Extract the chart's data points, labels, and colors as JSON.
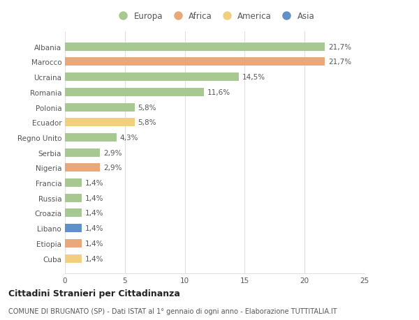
{
  "countries": [
    "Albania",
    "Marocco",
    "Ucraina",
    "Romania",
    "Polonia",
    "Ecuador",
    "Regno Unito",
    "Serbia",
    "Nigeria",
    "Francia",
    "Russia",
    "Croazia",
    "Libano",
    "Etiopia",
    "Cuba"
  ],
  "values": [
    21.7,
    21.7,
    14.5,
    11.6,
    5.8,
    5.8,
    4.3,
    2.9,
    2.9,
    1.4,
    1.4,
    1.4,
    1.4,
    1.4,
    1.4
  ],
  "labels": [
    "21,7%",
    "21,7%",
    "14,5%",
    "11,6%",
    "5,8%",
    "5,8%",
    "4,3%",
    "2,9%",
    "2,9%",
    "1,4%",
    "1,4%",
    "1,4%",
    "1,4%",
    "1,4%",
    "1,4%"
  ],
  "continents": [
    "Europa",
    "Africa",
    "Europa",
    "Europa",
    "Europa",
    "America",
    "Europa",
    "Europa",
    "Africa",
    "Europa",
    "Europa",
    "Europa",
    "Asia",
    "Africa",
    "America"
  ],
  "continent_colors": {
    "Europa": "#a8c891",
    "Africa": "#e8a87c",
    "America": "#f0d080",
    "Asia": "#6090c8"
  },
  "legend_order": [
    "Europa",
    "Africa",
    "America",
    "Asia"
  ],
  "title": "Cittadini Stranieri per Cittadinanza",
  "subtitle": "COMUNE DI BRUGNATO (SP) - Dati ISTAT al 1° gennaio di ogni anno - Elaborazione TUTTITALIA.IT",
  "xlim": [
    0,
    25
  ],
  "xticks": [
    0,
    5,
    10,
    15,
    20,
    25
  ],
  "background_color": "#ffffff",
  "grid_color": "#e0e0e0",
  "bar_height": 0.55,
  "title_fontsize": 9,
  "subtitle_fontsize": 7,
  "label_fontsize": 7.5,
  "tick_fontsize": 7.5,
  "legend_fontsize": 8.5
}
